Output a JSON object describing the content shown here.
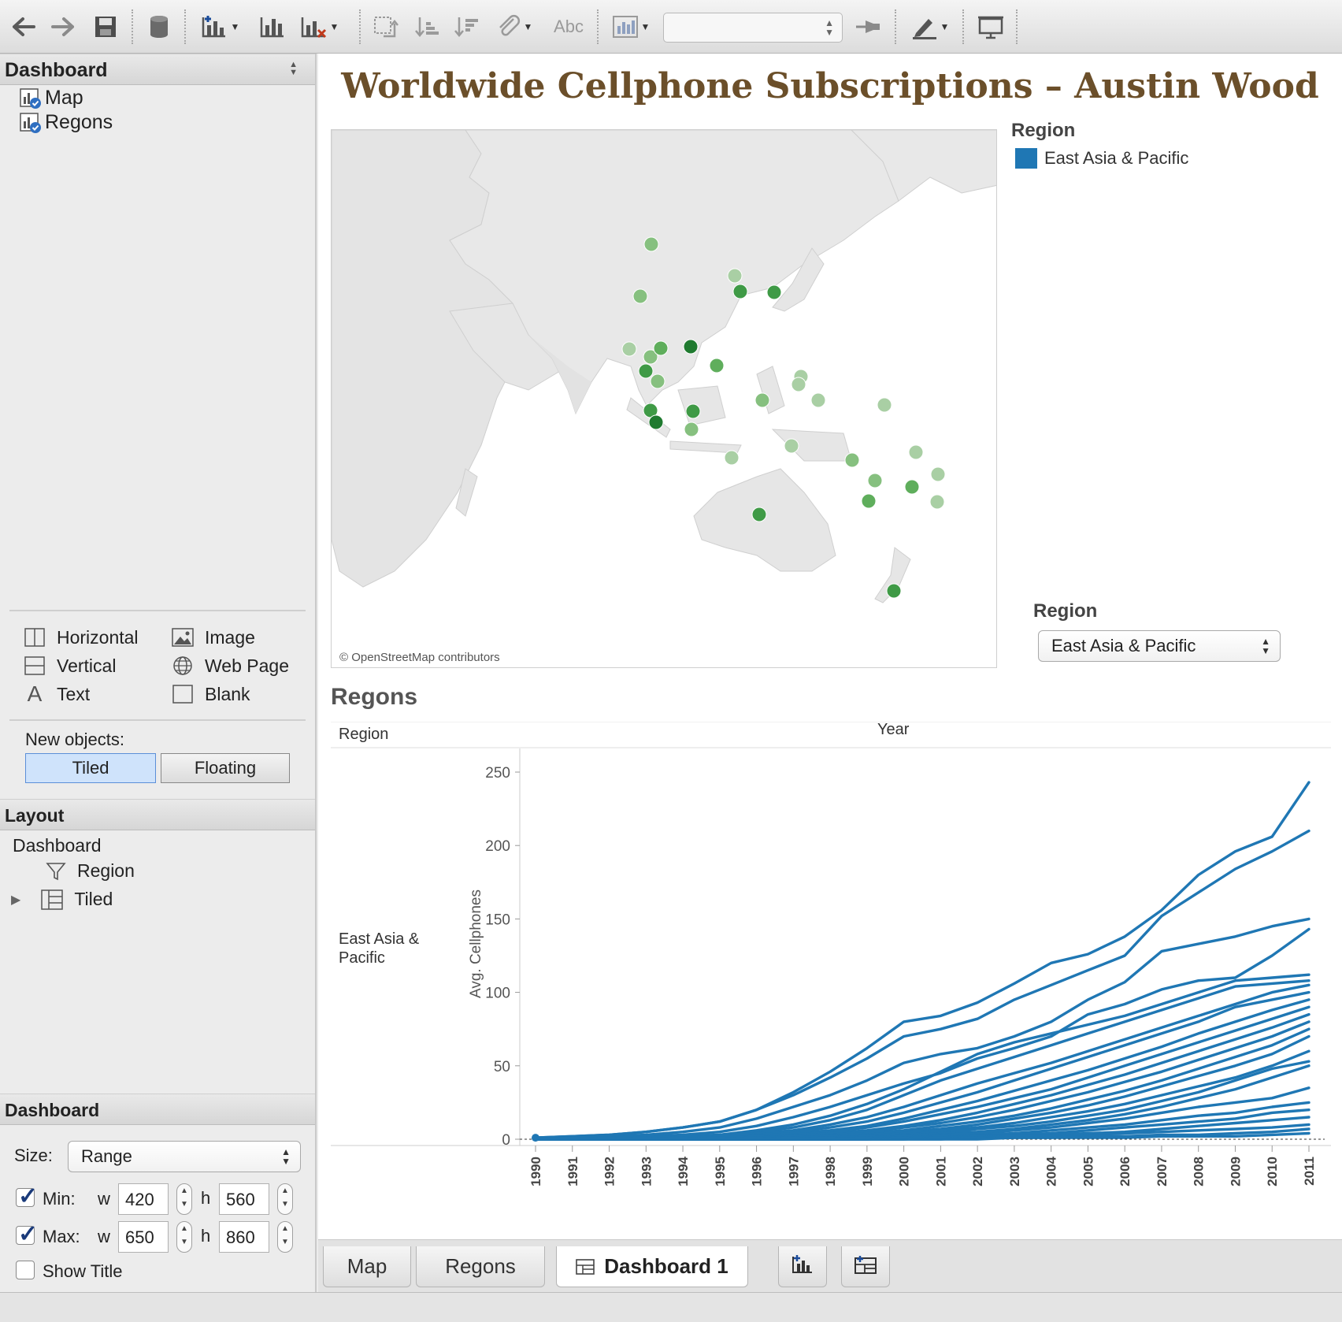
{
  "toolbar": {
    "icons": [
      "back-icon",
      "forward-icon",
      "save-icon",
      "datasource-icon",
      "new-sheet-icon",
      "duplicate-icon",
      "clear-sheet-icon",
      "swap-icon",
      "sort-ascending-icon",
      "sort-descending-icon",
      "group-icon",
      "label-icon",
      "show-me-icon",
      "fit-combo",
      "pin-icon",
      "highlight-icon",
      "presentation-icon"
    ],
    "label_text": "Abc"
  },
  "left_panel": {
    "dashboard_header": "Dashboard",
    "sheets": [
      {
        "label": "Map"
      },
      {
        "label": "Regons"
      }
    ],
    "objects": [
      {
        "label": "Horizontal",
        "icon": "horizontal-icon"
      },
      {
        "label": "Image",
        "icon": "image-icon"
      },
      {
        "label": "Vertical",
        "icon": "vertical-icon"
      },
      {
        "label": "Web Page",
        "icon": "globe-icon"
      },
      {
        "label": "Text",
        "icon": "text-icon"
      },
      {
        "label": "Blank",
        "icon": "blank-icon"
      }
    ],
    "new_objects_label": "New objects:",
    "tiled_label": "Tiled",
    "floating_label": "Floating",
    "layout_header": "Layout",
    "layout_tree": {
      "root": "Dashboard",
      "region": "Region",
      "tiled": "Tiled"
    },
    "dashboard_header_2": "Dashboard",
    "size_label": "Size:",
    "size_value": "Range",
    "min_label": "Min:",
    "max_label": "Max:",
    "w_label": "w",
    "h_label": "h",
    "min_w": "420",
    "min_h": "560",
    "max_w": "650",
    "max_h": "860",
    "show_title_label": "Show Title",
    "min_checked": true,
    "max_checked": true,
    "show_title_checked": false
  },
  "dashboard": {
    "title": "Worldwide Cellphone Subscriptions – Austin Wood",
    "map_credit": "© OpenStreetMap contributors",
    "legend_title": "Region",
    "legend_item": "East Asia & Pacific",
    "legend_color": "#1f77b4",
    "filter_title": "Region",
    "filter_value": "East Asia & Pacific",
    "sheet_title": "Regons",
    "row_header": "Region",
    "col_header": "Year",
    "row_value_line1": "East Asia &",
    "row_value_line2": "Pacific"
  },
  "tabs": [
    {
      "label": "Map"
    },
    {
      "label": "Regons"
    },
    {
      "label": "Dashboard 1",
      "active": true
    }
  ],
  "chart_data": {
    "type": "line",
    "ylabel": "Avg. Cellphones",
    "xlabel": "Year",
    "ylim": [
      0,
      250
    ],
    "yticks": [
      0,
      50,
      100,
      150,
      200,
      250
    ],
    "x": [
      "1990",
      "1991",
      "1992",
      "1993",
      "1994",
      "1995",
      "1996",
      "1997",
      "1998",
      "1999",
      "2000",
      "2001",
      "2002",
      "2003",
      "2004",
      "2005",
      "2006",
      "2007",
      "2008",
      "2009",
      "2010",
      "2011"
    ],
    "color": "#1f77b4",
    "series": [
      {
        "values": [
          1,
          2,
          3,
          5,
          8,
          12,
          20,
          32,
          46,
          62,
          80,
          84,
          93,
          106,
          120,
          126,
          138,
          156,
          180,
          196,
          206,
          243
        ]
      },
      {
        "values": [
          1,
          2,
          3,
          5,
          8,
          12,
          20,
          30,
          42,
          55,
          70,
          75,
          82,
          95,
          105,
          115,
          125,
          152,
          168,
          184,
          196,
          210
        ]
      },
      {
        "values": [
          1,
          1,
          2,
          3,
          5,
          8,
          14,
          22,
          30,
          40,
          52,
          58,
          62,
          70,
          80,
          95,
          107,
          128,
          133,
          138,
          145,
          150
        ]
      },
      {
        "values": [
          0,
          1,
          1,
          2,
          3,
          5,
          9,
          15,
          22,
          30,
          38,
          45,
          55,
          62,
          70,
          85,
          92,
          102,
          108,
          110,
          125,
          143
        ]
      },
      {
        "values": [
          0,
          0,
          1,
          1,
          2,
          3,
          6,
          10,
          16,
          24,
          34,
          46,
          58,
          66,
          72,
          78,
          84,
          92,
          100,
          108,
          110,
          112
        ]
      },
      {
        "values": [
          0,
          0,
          1,
          1,
          2,
          3,
          5,
          8,
          13,
          20,
          30,
          40,
          48,
          56,
          64,
          72,
          80,
          88,
          96,
          104,
          106,
          108
        ]
      },
      {
        "values": [
          0,
          0,
          0,
          1,
          1,
          2,
          4,
          6,
          10,
          15,
          22,
          30,
          38,
          45,
          52,
          60,
          68,
          76,
          84,
          92,
          100,
          105
        ]
      },
      {
        "values": [
          0,
          0,
          0,
          0,
          1,
          2,
          3,
          5,
          8,
          12,
          18,
          25,
          32,
          40,
          48,
          56,
          64,
          72,
          80,
          90,
          95,
          100
        ]
      },
      {
        "values": [
          0,
          0,
          0,
          0,
          1,
          1,
          2,
          4,
          6,
          9,
          14,
          20,
          26,
          33,
          40,
          47,
          55,
          63,
          72,
          80,
          88,
          95
        ]
      },
      {
        "values": [
          0,
          0,
          0,
          0,
          0,
          1,
          2,
          3,
          5,
          8,
          12,
          17,
          22,
          28,
          34,
          42,
          50,
          58,
          66,
          74,
          82,
          90
        ]
      },
      {
        "values": [
          0,
          0,
          0,
          0,
          0,
          1,
          1,
          2,
          4,
          6,
          9,
          13,
          18,
          24,
          30,
          37,
          44,
          52,
          60,
          68,
          76,
          85
        ]
      },
      {
        "values": [
          0,
          0,
          0,
          0,
          0,
          0,
          1,
          2,
          3,
          5,
          8,
          11,
          15,
          20,
          26,
          32,
          39,
          46,
          54,
          62,
          70,
          80
        ]
      },
      {
        "values": [
          0,
          0,
          0,
          0,
          0,
          0,
          1,
          1,
          2,
          4,
          6,
          9,
          12,
          16,
          21,
          27,
          33,
          40,
          48,
          56,
          64,
          75
        ]
      },
      {
        "values": [
          0,
          0,
          0,
          0,
          0,
          0,
          0,
          1,
          2,
          3,
          5,
          7,
          10,
          14,
          18,
          23,
          29,
          36,
          43,
          50,
          58,
          70
        ]
      },
      {
        "values": [
          0,
          0,
          0,
          0,
          0,
          0,
          0,
          1,
          1,
          2,
          4,
          6,
          8,
          11,
          15,
          19,
          24,
          30,
          36,
          42,
          50,
          60
        ]
      },
      {
        "values": [
          0,
          0,
          0,
          0,
          0,
          0,
          0,
          0,
          1,
          2,
          3,
          5,
          7,
          9,
          12,
          16,
          20,
          26,
          32,
          40,
          48,
          53
        ]
      },
      {
        "values": [
          0,
          0,
          0,
          0,
          0,
          0,
          0,
          0,
          1,
          1,
          2,
          4,
          5,
          7,
          10,
          13,
          17,
          22,
          28,
          34,
          42,
          50
        ]
      },
      {
        "values": [
          0,
          0,
          0,
          0,
          0,
          0,
          0,
          0,
          0,
          1,
          2,
          3,
          4,
          6,
          8,
          11,
          14,
          18,
          22,
          25,
          28,
          35
        ]
      },
      {
        "values": [
          0,
          0,
          0,
          0,
          0,
          0,
          0,
          0,
          0,
          1,
          1,
          2,
          3,
          4,
          6,
          8,
          10,
          13,
          16,
          18,
          22,
          25
        ]
      },
      {
        "values": [
          0,
          0,
          0,
          0,
          0,
          0,
          0,
          0,
          0,
          0,
          1,
          1,
          2,
          3,
          4,
          6,
          8,
          10,
          12,
          14,
          18,
          20
        ]
      },
      {
        "values": [
          0,
          0,
          0,
          0,
          0,
          0,
          0,
          0,
          0,
          0,
          1,
          1,
          2,
          2,
          3,
          4,
          5,
          7,
          9,
          11,
          13,
          15
        ]
      },
      {
        "values": [
          0,
          0,
          0,
          0,
          0,
          0,
          0,
          0,
          0,
          0,
          0,
          1,
          1,
          2,
          2,
          3,
          4,
          5,
          6,
          7,
          8,
          10
        ]
      },
      {
        "values": [
          0,
          0,
          0,
          0,
          0,
          0,
          0,
          0,
          0,
          0,
          0,
          0,
          1,
          1,
          1,
          2,
          2,
          3,
          3,
          4,
          5,
          7
        ]
      },
      {
        "values": [
          0,
          0,
          0,
          0,
          0,
          0,
          0,
          0,
          0,
          0,
          0,
          0,
          0,
          1,
          1,
          1,
          1,
          2,
          2,
          2,
          3,
          4
        ]
      }
    ]
  },
  "map_points": {
    "description_units": "normalized map positions are rendering-only; shades encode value",
    "shades": [
      "#a9cfa4",
      "#86c07f",
      "#5fae5c",
      "#3f9a46",
      "#1f7a2f"
    ]
  }
}
